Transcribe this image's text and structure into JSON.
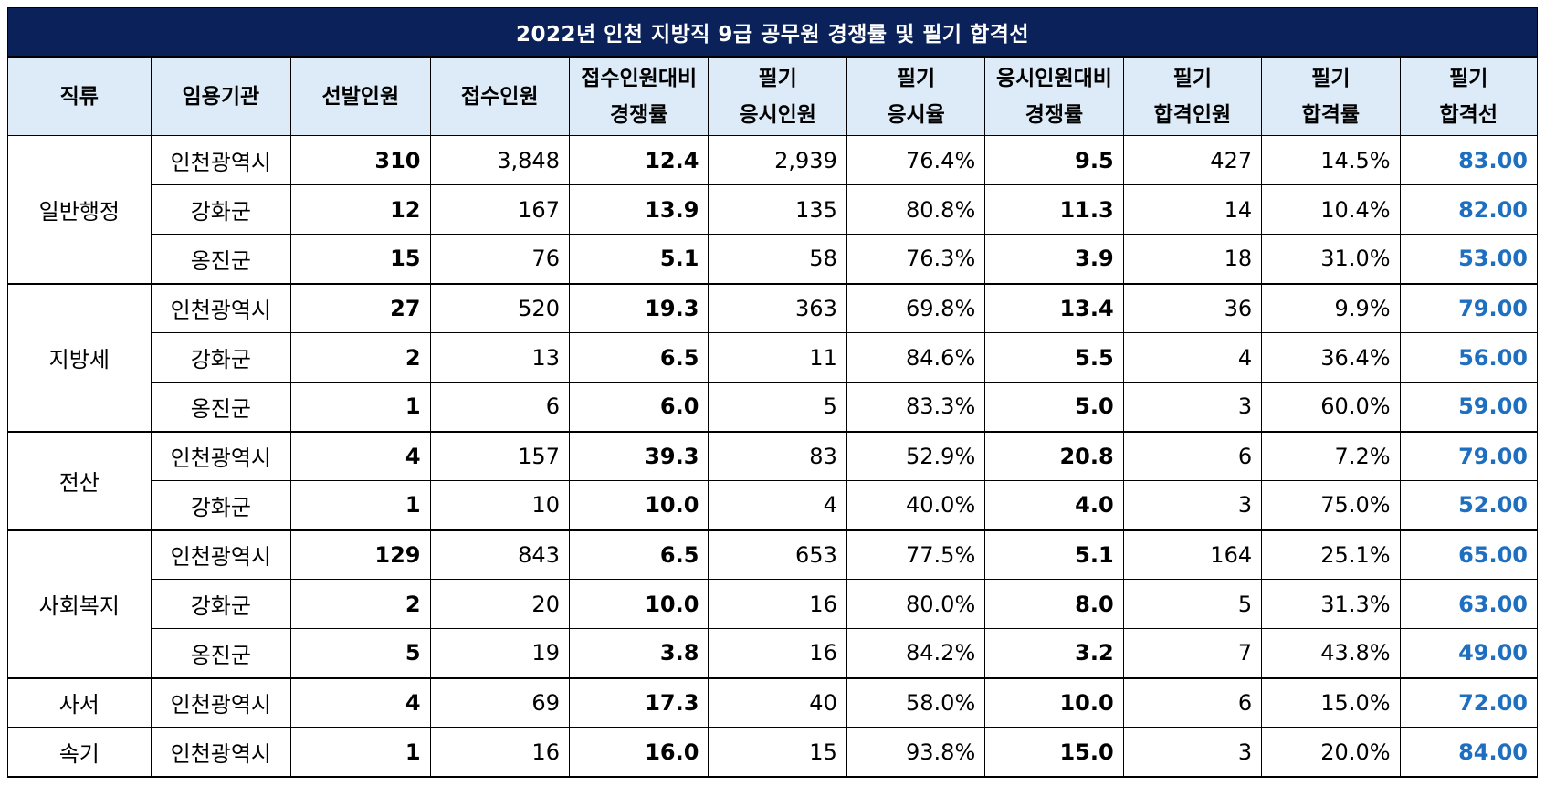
{
  "title": "2022년 인천 지방직 9급 공무원 경쟁률 및 필기 합격선",
  "headers": [
    [
      "직류"
    ],
    [
      "임용기관"
    ],
    [
      "선발인원"
    ],
    [
      "접수인원"
    ],
    [
      "접수인원대비",
      "경쟁률"
    ],
    [
      "필기",
      "응시인원"
    ],
    [
      "필기",
      "응시율"
    ],
    [
      "응시인원대비",
      "경쟁률"
    ],
    [
      "필기",
      "합격인원"
    ],
    [
      "필기",
      "합격률"
    ],
    [
      "필기",
      "합격선"
    ]
  ],
  "groups": [
    {
      "category": "일반행정",
      "rows": [
        {
          "agency": "인천광역시",
          "selected": "310",
          "applicants": "3,848",
          "comp_applied": "12.4",
          "exam_takers": "2,939",
          "exam_rate": "76.4%",
          "comp_taken": "9.5",
          "passers": "427",
          "pass_rate": "14.5%",
          "cutline": "83.00"
        },
        {
          "agency": "강화군",
          "selected": "12",
          "applicants": "167",
          "comp_applied": "13.9",
          "exam_takers": "135",
          "exam_rate": "80.8%",
          "comp_taken": "11.3",
          "passers": "14",
          "pass_rate": "10.4%",
          "cutline": "82.00"
        },
        {
          "agency": "옹진군",
          "selected": "15",
          "applicants": "76",
          "comp_applied": "5.1",
          "exam_takers": "58",
          "exam_rate": "76.3%",
          "comp_taken": "3.9",
          "passers": "18",
          "pass_rate": "31.0%",
          "cutline": "53.00"
        }
      ]
    },
    {
      "category": "지방세",
      "rows": [
        {
          "agency": "인천광역시",
          "selected": "27",
          "applicants": "520",
          "comp_applied": "19.3",
          "exam_takers": "363",
          "exam_rate": "69.8%",
          "comp_taken": "13.4",
          "passers": "36",
          "pass_rate": "9.9%",
          "cutline": "79.00"
        },
        {
          "agency": "강화군",
          "selected": "2",
          "applicants": "13",
          "comp_applied": "6.5",
          "exam_takers": "11",
          "exam_rate": "84.6%",
          "comp_taken": "5.5",
          "passers": "4",
          "pass_rate": "36.4%",
          "cutline": "56.00"
        },
        {
          "agency": "옹진군",
          "selected": "1",
          "applicants": "6",
          "comp_applied": "6.0",
          "exam_takers": "5",
          "exam_rate": "83.3%",
          "comp_taken": "5.0",
          "passers": "3",
          "pass_rate": "60.0%",
          "cutline": "59.00"
        }
      ]
    },
    {
      "category": "전산",
      "rows": [
        {
          "agency": "인천광역시",
          "selected": "4",
          "applicants": "157",
          "comp_applied": "39.3",
          "exam_takers": "83",
          "exam_rate": "52.9%",
          "comp_taken": "20.8",
          "passers": "6",
          "pass_rate": "7.2%",
          "cutline": "79.00"
        },
        {
          "agency": "강화군",
          "selected": "1",
          "applicants": "10",
          "comp_applied": "10.0",
          "exam_takers": "4",
          "exam_rate": "40.0%",
          "comp_taken": "4.0",
          "passers": "3",
          "pass_rate": "75.0%",
          "cutline": "52.00"
        }
      ]
    },
    {
      "category": "사회복지",
      "rows": [
        {
          "agency": "인천광역시",
          "selected": "129",
          "applicants": "843",
          "comp_applied": "6.5",
          "exam_takers": "653",
          "exam_rate": "77.5%",
          "comp_taken": "5.1",
          "passers": "164",
          "pass_rate": "25.1%",
          "cutline": "65.00"
        },
        {
          "agency": "강화군",
          "selected": "2",
          "applicants": "20",
          "comp_applied": "10.0",
          "exam_takers": "16",
          "exam_rate": "80.0%",
          "comp_taken": "8.0",
          "passers": "5",
          "pass_rate": "31.3%",
          "cutline": "63.00"
        },
        {
          "agency": "옹진군",
          "selected": "5",
          "applicants": "19",
          "comp_applied": "3.8",
          "exam_takers": "16",
          "exam_rate": "84.2%",
          "comp_taken": "3.2",
          "passers": "7",
          "pass_rate": "43.8%",
          "cutline": "49.00"
        }
      ]
    },
    {
      "category": "사서",
      "rows": [
        {
          "agency": "인천광역시",
          "selected": "4",
          "applicants": "69",
          "comp_applied": "17.3",
          "exam_takers": "40",
          "exam_rate": "58.0%",
          "comp_taken": "10.0",
          "passers": "6",
          "pass_rate": "15.0%",
          "cutline": "72.00"
        }
      ]
    },
    {
      "category": "속기",
      "rows": [
        {
          "agency": "인천광역시",
          "selected": "1",
          "applicants": "16",
          "comp_applied": "16.0",
          "exam_takers": "15",
          "exam_rate": "93.8%",
          "comp_taken": "15.0",
          "passers": "3",
          "pass_rate": "20.0%",
          "cutline": "84.00"
        }
      ]
    }
  ],
  "colors": {
    "title_bg": "#0a2259",
    "header_bg": "#dcebf7",
    "cutline_text": "#1f6fc0"
  }
}
